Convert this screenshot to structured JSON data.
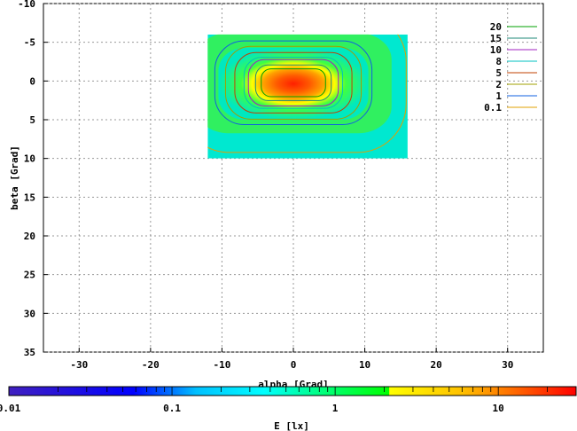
{
  "chart_data": {
    "type": "heatmap",
    "title": "",
    "xlabel": "alpha [Grad]",
    "ylabel": "beta [Grad]",
    "colorbar_label": "E [lx]",
    "xlim": [
      -35,
      35
    ],
    "ylim": [
      -10,
      35
    ],
    "y_inverted": true,
    "grid": true,
    "x_ticks": [
      -30,
      -20,
      -10,
      0,
      10,
      20,
      30
    ],
    "y_ticks": [
      -10,
      -5,
      0,
      5,
      10,
      15,
      20,
      25,
      30,
      35
    ],
    "data_extent": {
      "x": [
        -12,
        16
      ],
      "y": [
        -6,
        10
      ]
    },
    "peak": {
      "x": 0,
      "y": 0,
      "value": 30
    },
    "colorbar": {
      "scale": "log",
      "range": [
        0.01,
        30
      ],
      "ticks": [
        "0.01",
        "0.1",
        "1",
        "10"
      ]
    },
    "contours": [
      {
        "level": "20",
        "color": "#00a000",
        "half_width_x": 4.5,
        "half_height_y": 1.8
      },
      {
        "level": "15",
        "color": "#1f8a7a",
        "half_width_x": 5.3,
        "half_height_y": 2.3
      },
      {
        "level": "10",
        "color": "#a020c0",
        "half_width_x": 6.3,
        "half_height_y": 3.0
      },
      {
        "level": "8",
        "color": "#00c0c0",
        "half_width_x": 6.9,
        "half_height_y": 3.3
      },
      {
        "level": "5",
        "color": "#c04000",
        "half_width_x": 8.2,
        "half_height_y": 3.9
      },
      {
        "level": "2",
        "color": "#a0a000",
        "half_width_x": 9.5,
        "half_height_y": 4.7
      },
      {
        "level": "1",
        "color": "#1060e0",
        "half_width_x": 11.0,
        "half_height_y": 5.4
      },
      {
        "level": "0.1",
        "color": "#e0a000",
        "half_width_x": 15.8,
        "half_height_y": 9.0
      }
    ]
  }
}
